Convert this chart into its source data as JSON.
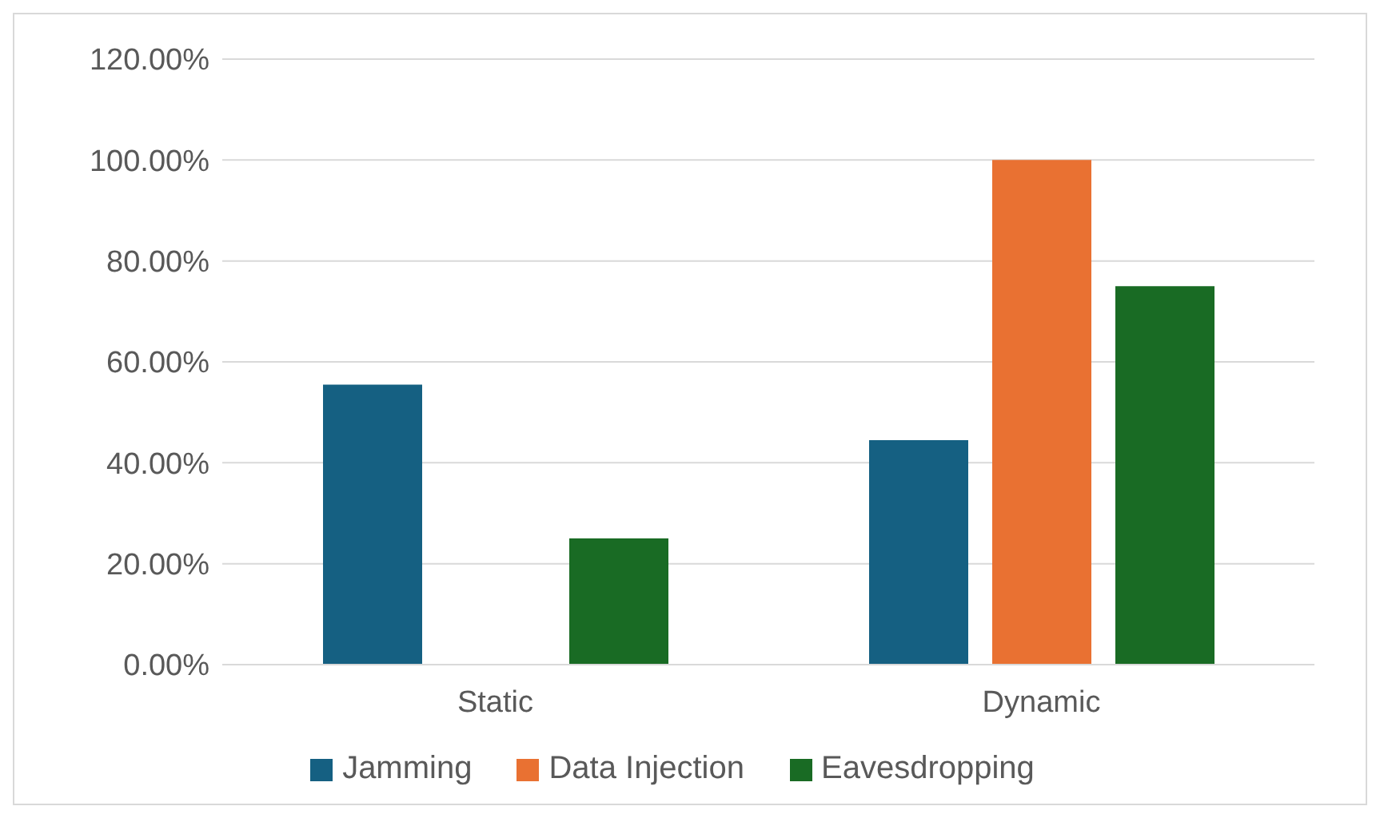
{
  "chart_data": {
    "type": "bar",
    "categories": [
      "Static",
      "Dynamic"
    ],
    "series": [
      {
        "name": "Jamming",
        "color": "#156082",
        "values": [
          0.555,
          0.445
        ]
      },
      {
        "name": "Data Injection",
        "color": "#e97132",
        "values": [
          0,
          1.0
        ]
      },
      {
        "name": "Eavesdropping",
        "color": "#196b24",
        "values": [
          0.25,
          0.75
        ]
      }
    ],
    "ylim": [
      0,
      1.2
    ],
    "yticks": [
      {
        "value": 0,
        "label": "0.00%"
      },
      {
        "value": 0.2,
        "label": "20.00%"
      },
      {
        "value": 0.4,
        "label": "40.00%"
      },
      {
        "value": 0.6,
        "label": "60.00%"
      },
      {
        "value": 0.8,
        "label": "80.00%"
      },
      {
        "value": 1.0,
        "label": "100.00%"
      },
      {
        "value": 1.2,
        "label": "120.00%"
      }
    ],
    "grid": "y",
    "legend": "bottom"
  }
}
